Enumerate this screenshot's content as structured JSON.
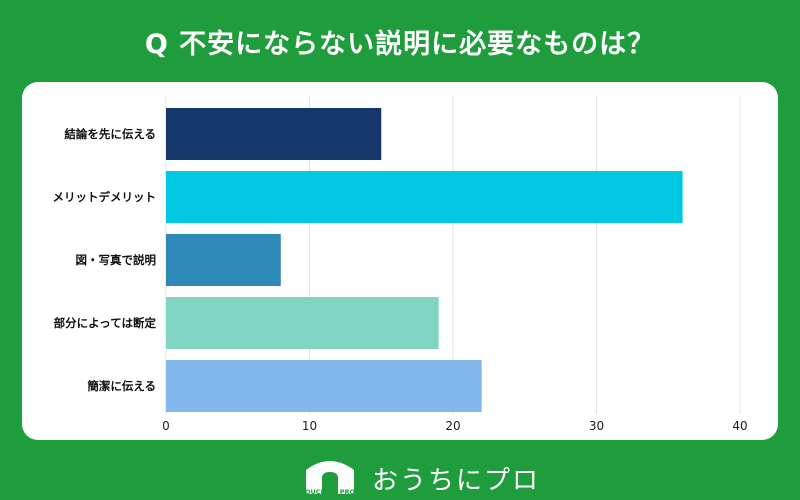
{
  "title": "Q 不安にならない説明に必要なものは？",
  "brand": {
    "logo_text": "OUCHI ni PRO",
    "name": "おうちにプロ"
  },
  "colors": {
    "background": "#1f9d3d",
    "card": "#ffffff",
    "grid": "#e3e3e3"
  },
  "chart_data": {
    "type": "bar",
    "orientation": "horizontal",
    "categories": [
      "結論を先に伝える",
      "メリットデメリット",
      "図・写真で説明",
      "部分によっては断定",
      "簡潔に伝える"
    ],
    "values": [
      15,
      36,
      8,
      19,
      22
    ],
    "bar_colors": [
      "#14386b",
      "#00c8e0",
      "#2e88b8",
      "#7fd4c4",
      "#82b8ec"
    ],
    "xlim": [
      0,
      40
    ],
    "xticks": [
      0,
      10,
      20,
      30,
      40
    ],
    "grid": true,
    "legend": "none"
  }
}
